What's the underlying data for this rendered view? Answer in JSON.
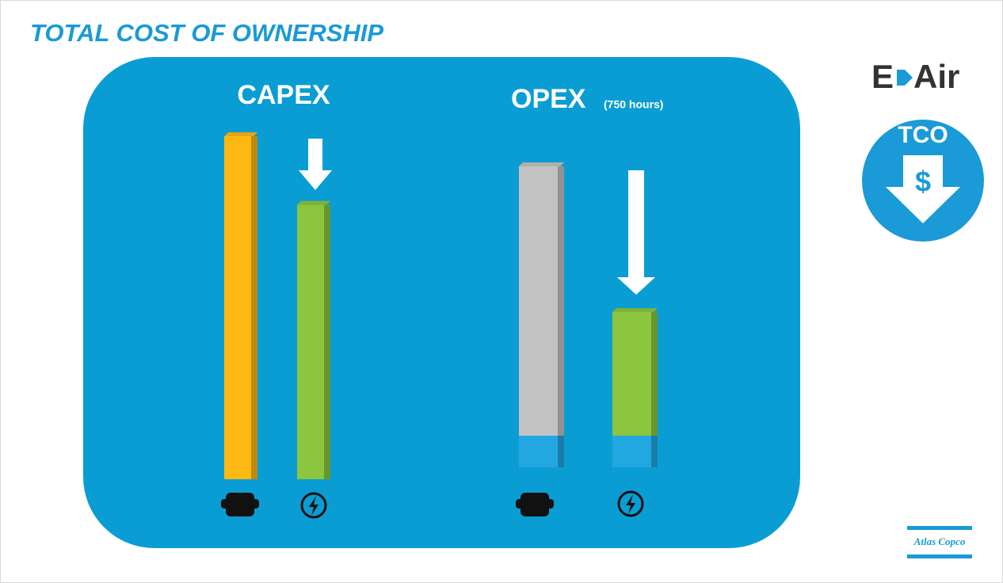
{
  "header": {
    "title": "TOTAL COST OF OWNERSHIP"
  },
  "logos": {
    "brand_left": "E",
    "brand_right": "Air",
    "badge": "TCO",
    "badge_symbol": "$",
    "company": "Atlas Copco"
  },
  "chart_data": [
    {
      "type": "bar",
      "title": "CAPEX",
      "categories": [
        null,
        null
      ],
      "values": [
        100,
        80
      ],
      "colors": [
        "#fdb813",
        "#8cc63e"
      ],
      "ylim": [
        0,
        100
      ]
    },
    {
      "type": "stacked_bar",
      "title": "OPEX",
      "subtitle": "(750 hours)",
      "categories": [
        null,
        null
      ],
      "ylim": [
        0,
        100
      ],
      "series": [
        {
          "color": "#22a7e0",
          "values": [
            10,
            10
          ]
        },
        {
          "colors": [
            "#c2c2c2",
            "#8cc63e"
          ],
          "values": [
            85,
            39
          ]
        }
      ]
    }
  ]
}
